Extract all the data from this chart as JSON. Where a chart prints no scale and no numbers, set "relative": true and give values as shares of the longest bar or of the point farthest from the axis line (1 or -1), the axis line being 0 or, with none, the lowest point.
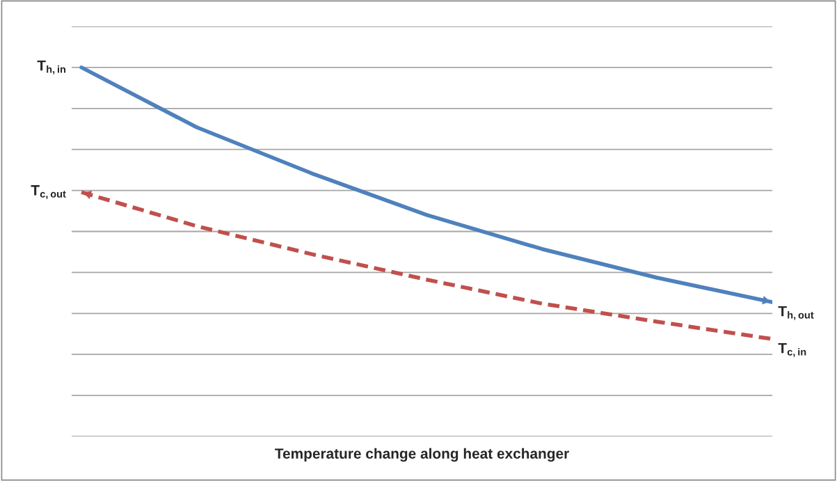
{
  "chart_data": {
    "type": "line",
    "relative": true,
    "xlabel": "Temperature change along heat exchanger",
    "grid": "y",
    "categories": [
      null,
      null,
      null,
      null,
      null,
      null,
      null
    ],
    "series": [
      {
        "color": "#4f81bd",
        "line_style": "solid",
        "values": [
          1.0,
          0.838,
          0.713,
          0.6,
          0.508,
          0.43,
          0.364
        ]
      },
      {
        "color": "#c0504d",
        "line_style": "dashed",
        "values": [
          0.662,
          0.57,
          0.494,
          0.425,
          0.36,
          0.311,
          0.264
        ]
      }
    ],
    "annotations": [
      "T$_{h,in}$",
      "T$_{c,out}$",
      "T$_{h,out}$",
      "T$_{c,in}$"
    ]
  }
}
